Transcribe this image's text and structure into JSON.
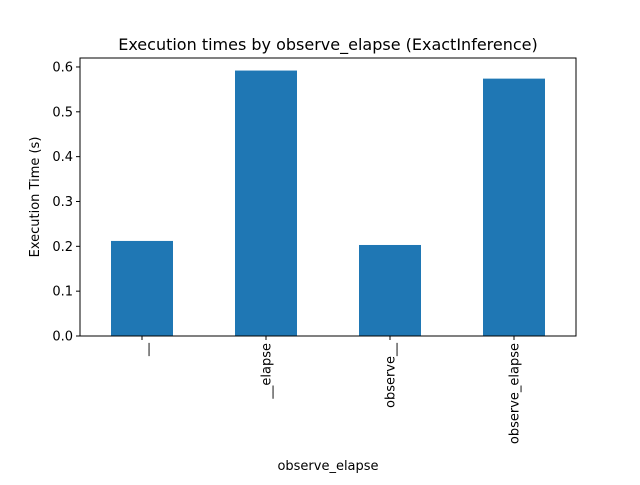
{
  "chart_data": {
    "type": "bar",
    "title": "Execution times by observe_elapse (ExactInference)",
    "xlabel": "observe_elapse",
    "ylabel": "Execution Time (s)",
    "categories": [
      "__",
      "__elapse",
      "observe__",
      "observe_elapse"
    ],
    "values": [
      0.212,
      0.592,
      0.203,
      0.574
    ],
    "ylim": [
      0,
      0.62
    ],
    "yticks": [
      "0.0",
      "0.1",
      "0.2",
      "0.3",
      "0.4",
      "0.5",
      "0.6"
    ],
    "bar_color": "#1f77b4",
    "grid": false,
    "legend": false
  }
}
